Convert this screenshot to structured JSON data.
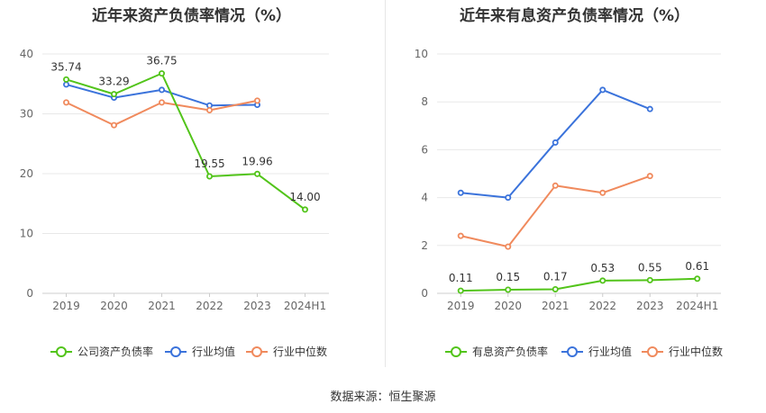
{
  "charts": [
    {
      "title": "近年来资产负债率情况（%）"
    },
    {
      "title": "近年来有息资产负债率情况（%）"
    }
  ],
  "source_text": "数据来源：恒生聚源",
  "chart_data": [
    {
      "type": "line",
      "title": "近年来资产负债率情况（%）",
      "categories": [
        "2019",
        "2020",
        "2021",
        "2022",
        "2023",
        "2024H1"
      ],
      "ylim": [
        0,
        40
      ],
      "yticks": [
        0,
        10,
        20,
        30,
        40
      ],
      "grid": true,
      "legend": "bottom",
      "series": [
        {
          "name": "公司资产负债率",
          "color": "#52c41a",
          "values": [
            35.74,
            33.29,
            36.75,
            19.55,
            19.96,
            14.0
          ],
          "labels": [
            "35.74",
            "33.29",
            "36.75",
            "19.55",
            "19.96",
            "14.00"
          ]
        },
        {
          "name": "行业均值",
          "color": "#3b73db",
          "values": [
            34.9,
            32.7,
            34.0,
            31.4,
            31.5,
            null
          ]
        },
        {
          "name": "行业中位数",
          "color": "#f08a5d",
          "values": [
            31.9,
            28.1,
            31.9,
            30.6,
            32.2,
            null
          ]
        }
      ]
    },
    {
      "type": "line",
      "title": "近年来有息资产负债率情况（%）",
      "categories": [
        "2019",
        "2020",
        "2021",
        "2022",
        "2023",
        "2024H1"
      ],
      "ylim": [
        0,
        10
      ],
      "yticks": [
        0,
        2,
        4,
        6,
        8,
        10
      ],
      "grid": true,
      "legend": "bottom",
      "series": [
        {
          "name": "有息资产负债率",
          "color": "#52c41a",
          "values": [
            0.11,
            0.15,
            0.17,
            0.53,
            0.55,
            0.61
          ],
          "labels": [
            "0.11",
            "0.15",
            "0.17",
            "0.53",
            "0.55",
            "0.61"
          ]
        },
        {
          "name": "行业均值",
          "color": "#3b73db",
          "values": [
            4.2,
            4.0,
            6.3,
            8.5,
            7.7,
            null
          ]
        },
        {
          "name": "行业中位数",
          "color": "#f08a5d",
          "values": [
            2.4,
            1.95,
            4.5,
            4.2,
            4.9,
            null
          ]
        }
      ]
    }
  ]
}
